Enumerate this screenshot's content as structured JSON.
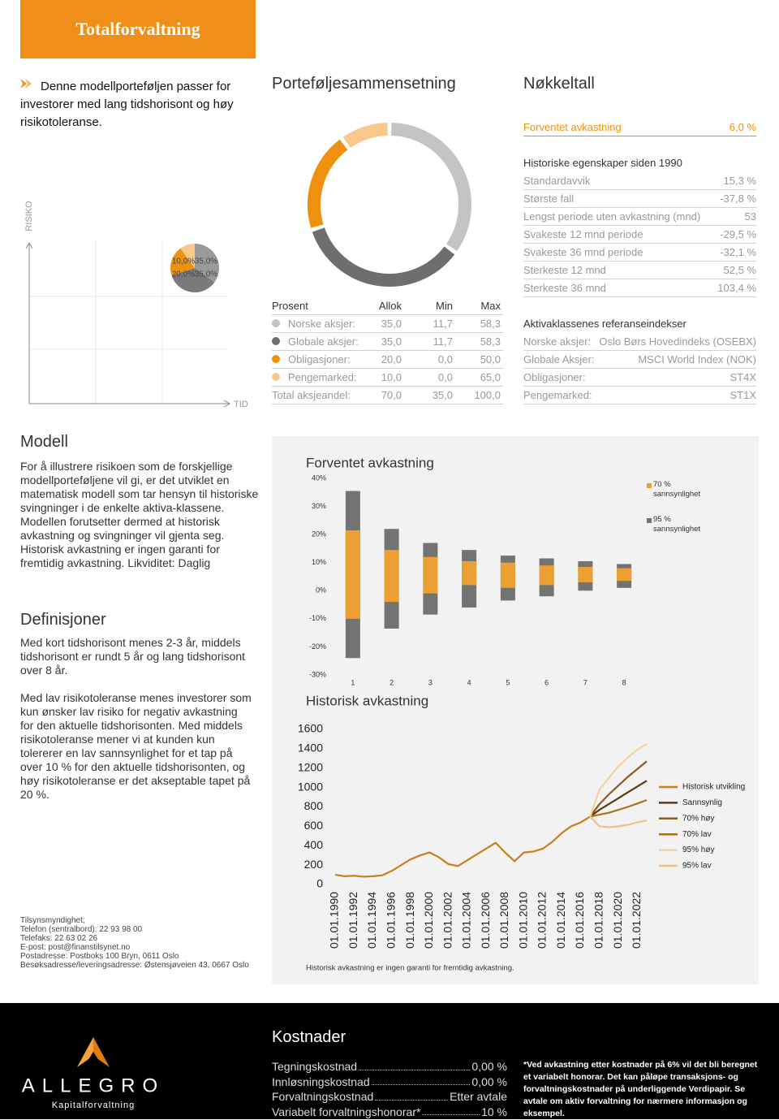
{
  "header": {
    "title": "Totalforvaltning"
  },
  "intro": "Denne modellporteføljen passer for investorer med lang tidshorisont og høy risikotoleranse.",
  "risk": {
    "y_label": "RISIKO",
    "x_label": "TID"
  },
  "portfolio": {
    "title": "Porteføljesammensetning",
    "table": {
      "columns": [
        "Prosent",
        "Allok",
        "Min",
        "Max"
      ],
      "rows": [
        {
          "cells": [
            "Norske aksjer:",
            "35,0",
            "11,7",
            "58,3"
          ],
          "color": "#c4c4c4"
        },
        {
          "cells": [
            "Globale aksjer:",
            "35,0",
            "11,7",
            "58,3"
          ],
          "color": "#6e6e6e"
        },
        {
          "cells": [
            "Obligasjoner:",
            "20,0",
            "0,0",
            "50,0"
          ],
          "color": "#f0900f"
        },
        {
          "cells": [
            "Pengemarked:",
            "10,0",
            "0,0",
            "65,0"
          ],
          "color": "#f8c98a"
        },
        {
          "cells": [
            "Total aksjeandel:",
            "70,0",
            "35,0",
            "100,0"
          ]
        }
      ]
    }
  },
  "key_figures": {
    "title": "Nøkkeltall",
    "expected": {
      "label": "Forventet avkastning",
      "value": "6,0 %"
    },
    "history_title": "Historiske egenskaper siden 1990",
    "history": [
      [
        "Standardavvik",
        "15,3 %"
      ],
      [
        "Største fall",
        "-37,8 %"
      ],
      [
        "Lengst periode uten avkastning (mnd)",
        "53"
      ],
      [
        "Svakeste 12 mnd periode",
        "-29,5 %"
      ],
      [
        "Svakeste 36 mnd periode",
        "-32,1 %"
      ],
      [
        "Sterkeste 12 mnd",
        "52,5 %"
      ],
      [
        "Sterkeste 36 mnd",
        "103,4 %"
      ]
    ],
    "index_title": "Aktivaklassenes referanseindekser",
    "indices": [
      [
        "Norske aksjer:",
        "Oslo Børs Hovedindeks (OSEBX)"
      ],
      [
        "Globale Aksjer:",
        "MSCI World Index (NOK)"
      ],
      [
        "Obligasjoner:",
        "ST4X"
      ],
      [
        "Pengemarked:",
        "ST1X"
      ]
    ]
  },
  "model": {
    "title": "Modell",
    "text": "For å illustrere risikoen som de forskjellige modellporteføljene vil gi, er det utviklet en matematisk modell som tar hensyn til historiske svingninger i de enkelte aktiva-klassene. Modellen forutsetter dermed at historisk avkastning og svingninger vil gjenta seg. Historisk avkastning er ingen garanti for fremtidig avkastning. Likviditet: Daglig"
  },
  "definitions": {
    "title": "Definisjoner",
    "paragraphs": [
      "Med kort tidshorisont menes 2-3 år, middels tidshorisont er rundt 5 år og lang tidshorisont over 8 år.",
      "Med lav risikotoleranse menes investorer som kun ønsker lav risiko for negativ avkastning for den aktuelle tidshorisonten. Med middels risikotoleranse mener vi at kunden kun tolererer en lav sannsynlighet for et tap på over 10 % for den aktuelle tidshorisonten, og høy risikotoleranse er det akseptable tapet på 20 %."
    ]
  },
  "contact": [
    "Tilsynsmyndighet;",
    "Telefon (sentralbord): 22 93 98 00",
    "Telefaks: 22 63 02 26",
    "E-post: post@finanstilsynet.no",
    "Postadresse: Postboks 100 Bryn, 0611 Oslo",
    "Besøksadresse/leveringsadresse: Østensjøveien 43, 0667 Oslo"
  ],
  "logo": {
    "name": "ALLEGRO",
    "tagline": "Kapitalforvaltning"
  },
  "costs": {
    "title": "Kostnader",
    "rows": [
      [
        "Tegningskostnad",
        "0,00 %"
      ],
      [
        "Innløsningskostnad",
        "0,00 %"
      ],
      [
        "Forvaltningskostnad",
        "Etter avtale"
      ],
      [
        "Variabelt forvaltningshonorar*",
        "10 %"
      ]
    ],
    "note": "*Ved avkastning etter kostnader på 6% vil det bli beregnet et variabelt honorar. Det kan påløpe transaksjons- og forvaltningskostnader på underliggende Verdipapir. Se avtale om aktiv forvaltning for nærmere informasjon og eksempel."
  },
  "chart_data": [
    {
      "type": "pie",
      "values": [
        35,
        35,
        20,
        10
      ],
      "value_labels": [
        "35,0%",
        "35,0%",
        "20,0%",
        "10,0%"
      ],
      "colors": [
        "#9a9a9a",
        "#7a7a7a",
        "#f0900f",
        "#f8c98a"
      ]
    },
    {
      "type": "donut",
      "values": [
        35,
        35,
        20,
        10
      ],
      "colors": [
        "#c4c4c4",
        "#6e6e6e",
        "#f0900f",
        "#f8c98a"
      ]
    },
    {
      "type": "bar",
      "title": "Forventet avkastning",
      "categories": [
        "1",
        "2",
        "3",
        "4",
        "5",
        "6",
        "7",
        "8"
      ],
      "series": [
        {
          "name": "95 % sannsynlighet",
          "color": "#737373",
          "high": [
            35.5,
            22,
            17,
            14.5,
            12.5,
            11.5,
            10.5,
            9.5
          ],
          "low": [
            -24,
            -13.5,
            -8.5,
            -6,
            -3.5,
            -2,
            0,
            1
          ]
        },
        {
          "name": "70 % sannsynlighet",
          "color": "#eba034",
          "high": [
            21.5,
            14.5,
            12,
            10.5,
            10,
            9,
            8.5,
            8
          ],
          "low": [
            -10,
            -4,
            -1,
            2,
            1,
            2,
            3,
            3.5
          ]
        }
      ],
      "ylim": [
        -30,
        40
      ],
      "yticks": [
        {
          "value": 40,
          "label": "40%"
        },
        {
          "value": 30,
          "label": "30%"
        },
        {
          "value": 20,
          "label": "20%"
        },
        {
          "value": 10,
          "label": "10%"
        },
        {
          "value": 0,
          "label": "0%"
        },
        {
          "value": -10,
          "label": "-10%"
        },
        {
          "value": -20,
          "label": "-20%"
        },
        {
          "value": -30,
          "label": "-30%"
        }
      ]
    },
    {
      "type": "line",
      "title": "Historisk avkastning",
      "note": "Historisk avkastning er ingen garanti for fremtidig avkastning.",
      "xlim": [
        1990,
        2023
      ],
      "ylim": [
        0,
        1600
      ],
      "yticks": [
        0,
        200,
        400,
        600,
        800,
        1000,
        1200,
        1400,
        1600
      ],
      "xticks": [
        {
          "value": 1990,
          "label": "01.01.1990"
        },
        {
          "value": 1992,
          "label": "01.01.1992"
        },
        {
          "value": 1994,
          "label": "01.01.1994"
        },
        {
          "value": 1996,
          "label": "01.01.1996"
        },
        {
          "value": 1998,
          "label": "01.01.1998"
        },
        {
          "value": 2000,
          "label": "01.01.2000"
        },
        {
          "value": 2002,
          "label": "01.01.2002"
        },
        {
          "value": 2004,
          "label": "01.01.2004"
        },
        {
          "value": 2006,
          "label": "01.01.2006"
        },
        {
          "value": 2008,
          "label": "01.01.2008"
        },
        {
          "value": 2010,
          "label": "01.01.2010"
        },
        {
          "value": 2012,
          "label": "01.01.2012"
        },
        {
          "value": 2014,
          "label": "01.01.2014"
        },
        {
          "value": 2016,
          "label": "01.01.2016"
        },
        {
          "value": 2018,
          "label": "01.01.2018"
        },
        {
          "value": 2020,
          "label": "01.01.2020"
        },
        {
          "value": 2022,
          "label": "01.01.2022"
        }
      ],
      "series": [
        {
          "name": "Historisk utvikling",
          "color": "#c6801c",
          "x": [
            1990,
            1991,
            1992,
            1993,
            1994,
            1995,
            1996,
            1997,
            1998,
            1999,
            2000,
            2001,
            2002,
            2003,
            2004,
            2005,
            2006,
            2007,
            2008,
            2009,
            2010,
            2011,
            2012,
            2013,
            2014,
            2015,
            2016,
            2017
          ],
          "values": [
            100,
            85,
            90,
            80,
            85,
            95,
            140,
            200,
            260,
            300,
            330,
            280,
            210,
            190,
            250,
            310,
            370,
            430,
            330,
            240,
            330,
            340,
            370,
            440,
            530,
            600,
            640,
            700
          ]
        },
        {
          "name": "Sannsynlig",
          "color": "#5b3a12",
          "x": [
            2017,
            2018,
            2019,
            2020,
            2021,
            2022,
            2023
          ],
          "values": [
            700,
            770,
            830,
            890,
            950,
            1010,
            1070
          ]
        },
        {
          "name": "70% høy",
          "color": "#8a5c1c",
          "x": [
            2017,
            2018,
            2019,
            2020,
            2021,
            2022,
            2023
          ],
          "values": [
            700,
            830,
            930,
            1020,
            1110,
            1190,
            1270
          ]
        },
        {
          "name": "70% lav",
          "color": "#a8731f",
          "x": [
            2017,
            2018,
            2019,
            2020,
            2021,
            2022,
            2023
          ],
          "values": [
            700,
            720,
            740,
            770,
            800,
            835,
            870
          ]
        },
        {
          "name": "95% høy",
          "color": "#f5d3a0",
          "x": [
            2017,
            2018,
            2019,
            2020,
            2021,
            2022,
            2023
          ],
          "values": [
            700,
            980,
            1100,
            1220,
            1310,
            1390,
            1450
          ]
        },
        {
          "name": "95% lav",
          "color": "#edc27f",
          "x": [
            2017,
            2018,
            2019,
            2020,
            2021,
            2022,
            2023
          ],
          "values": [
            700,
            600,
            590,
            600,
            615,
            640,
            660
          ]
        }
      ]
    }
  ]
}
